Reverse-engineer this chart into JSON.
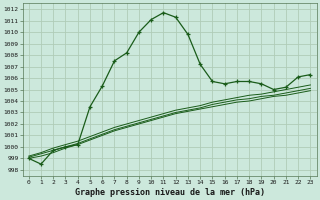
{
  "title": "Graphe pression niveau de la mer (hPa)",
  "bg_color": "#cce8dc",
  "grid_color": "#b0ccb8",
  "line_color": "#1a5c1a",
  "x_ticks": [
    0,
    1,
    2,
    3,
    4,
    5,
    6,
    7,
    8,
    9,
    10,
    11,
    12,
    13,
    14,
    15,
    16,
    17,
    18,
    19,
    20,
    21,
    22,
    23
  ],
  "ylim": [
    997.5,
    1012.5
  ],
  "y_ticks": [
    998,
    999,
    1000,
    1001,
    1002,
    1003,
    1004,
    1005,
    1006,
    1007,
    1008,
    1009,
    1010,
    1011,
    1012
  ],
  "main_series": [
    999.0,
    998.5,
    999.7,
    1000.0,
    1000.2,
    1003.5,
    1005.3,
    1007.5,
    1008.2,
    1010.0,
    1011.1,
    1011.7,
    1011.3,
    1009.8,
    1007.2,
    1005.7,
    1005.5,
    1005.7,
    1005.7,
    1005.5,
    1005.0,
    1005.2,
    1006.1,
    1006.3
  ],
  "trend_lines": [
    [
      999.0,
      999.2,
      999.5,
      999.9,
      1000.2,
      1000.6,
      1001.0,
      1001.4,
      1001.7,
      1002.0,
      1002.3,
      1002.6,
      1002.9,
      1003.1,
      1003.3,
      1003.5,
      1003.7,
      1003.9,
      1004.0,
      1004.2,
      1004.4,
      1004.5,
      1004.7,
      1004.9
    ],
    [
      999.1,
      999.4,
      999.7,
      1000.0,
      1000.3,
      1000.7,
      1001.1,
      1001.5,
      1001.8,
      1002.1,
      1002.4,
      1002.7,
      1003.0,
      1003.2,
      1003.4,
      1003.7,
      1003.9,
      1004.1,
      1004.2,
      1004.4,
      1004.5,
      1004.7,
      1004.9,
      1005.1
    ],
    [
      999.2,
      999.5,
      999.9,
      1000.2,
      1000.5,
      1000.9,
      1001.3,
      1001.7,
      1002.0,
      1002.3,
      1002.6,
      1002.9,
      1003.2,
      1003.4,
      1003.6,
      1003.9,
      1004.1,
      1004.3,
      1004.5,
      1004.6,
      1004.8,
      1005.0,
      1005.2,
      1005.4
    ]
  ],
  "ylabel_fontsize": 5.0,
  "xlabel_fontsize": 6.0
}
